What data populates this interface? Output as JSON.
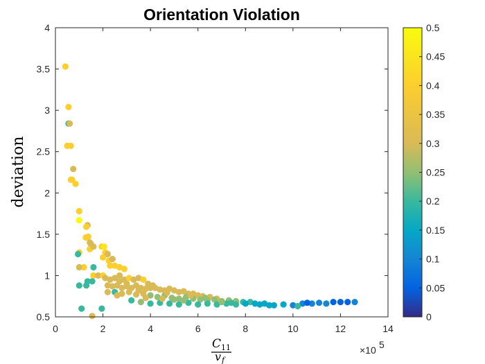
{
  "chart_data": {
    "type": "scatter",
    "title": "Orientation Violation",
    "ylabel": "deviation",
    "xlabel": {
      "numerator": "C",
      "numerator_sub": "11",
      "denominator": "v",
      "denominator_sub": "f"
    },
    "x_exponent": {
      "base": "×10",
      "power": "5"
    },
    "xlim": [
      0,
      14
    ],
    "ylim": [
      0.5,
      4
    ],
    "xticks": [
      "0",
      "2",
      "4",
      "6",
      "8",
      "10",
      "12",
      "14"
    ],
    "yticks": [
      "0.5",
      "1",
      "1.5",
      "2",
      "2.5",
      "3",
      "3.5",
      "4"
    ],
    "colorbar": {
      "range": [
        0,
        0.5
      ],
      "colormap": "parula",
      "ticks": [
        "0",
        "0.05",
        "0.1",
        "0.15",
        "0.2",
        "0.25",
        "0.3",
        "0.35",
        "0.4",
        "0.45",
        "0.5"
      ]
    },
    "grid": false,
    "points": [
      [
        0.42,
        3.53,
        0.4
      ],
      [
        0.55,
        3.04,
        0.4
      ],
      [
        0.55,
        2.84,
        0.2
      ],
      [
        0.6,
        2.84,
        0.3
      ],
      [
        0.5,
        2.57,
        0.4
      ],
      [
        0.65,
        2.57,
        0.4
      ],
      [
        0.75,
        2.29,
        0.3
      ],
      [
        0.7,
        2.16,
        0.4
      ],
      [
        0.65,
        2.16,
        0.4
      ],
      [
        0.85,
        2.11,
        0.4
      ],
      [
        1.0,
        1.78,
        0.4
      ],
      [
        1.0,
        1.67,
        0.5
      ],
      [
        1.35,
        1.61,
        0.3
      ],
      [
        1.3,
        1.59,
        0.4
      ],
      [
        1.28,
        1.46,
        0.4
      ],
      [
        1.38,
        1.47,
        0.4
      ],
      [
        1.45,
        1.4,
        0.3
      ],
      [
        1.5,
        1.38,
        0.3
      ],
      [
        1.0,
        1.28,
        0.4
      ],
      [
        0.95,
        1.26,
        0.2
      ],
      [
        1.45,
        1.32,
        0.4
      ],
      [
        1.6,
        1.35,
        0.3
      ],
      [
        1.2,
        1.1,
        0.4
      ],
      [
        1.0,
        1.1,
        0.3
      ],
      [
        1.6,
        1.1,
        0.2
      ],
      [
        1.6,
        1.0,
        0.4
      ],
      [
        1.35,
        0.93,
        0.2
      ],
      [
        1.55,
        0.93,
        0.2
      ],
      [
        1.3,
        0.88,
        0.2
      ],
      [
        1.0,
        0.88,
        0.2
      ],
      [
        1.1,
        0.6,
        0.2
      ],
      [
        1.95,
        0.6,
        0.2
      ],
      [
        1.55,
        0.51,
        0.3
      ],
      [
        1.95,
        1.35,
        0.4
      ],
      [
        2.05,
        1.35,
        0.45
      ],
      [
        2.1,
        1.28,
        0.4
      ],
      [
        2.2,
        1.26,
        0.3
      ],
      [
        2.0,
        1.22,
        0.4
      ],
      [
        2.25,
        1.18,
        0.4
      ],
      [
        2.4,
        1.2,
        0.3
      ],
      [
        2.3,
        1.12,
        0.4
      ],
      [
        2.5,
        1.12,
        0.4
      ],
      [
        2.7,
        1.1,
        0.4
      ],
      [
        2.9,
        1.08,
        0.4
      ],
      [
        1.8,
        1.0,
        0.3
      ],
      [
        2.0,
        1.0,
        0.4
      ],
      [
        2.1,
        0.97,
        0.3
      ],
      [
        2.3,
        0.95,
        0.3
      ],
      [
        2.5,
        0.97,
        0.3
      ],
      [
        2.7,
        0.93,
        0.3
      ],
      [
        2.9,
        0.95,
        0.3
      ],
      [
        3.1,
        0.97,
        0.4
      ],
      [
        3.3,
        0.95,
        0.3
      ],
      [
        3.5,
        0.97,
        0.3
      ],
      [
        3.7,
        0.95,
        0.4
      ],
      [
        3.9,
        0.9,
        0.3
      ],
      [
        4.1,
        0.88,
        0.3
      ],
      [
        2.2,
        0.88,
        0.3
      ],
      [
        2.4,
        0.87,
        0.3
      ],
      [
        2.6,
        0.88,
        0.3
      ],
      [
        2.8,
        0.85,
        0.3
      ],
      [
        3.0,
        0.87,
        0.3
      ],
      [
        3.2,
        0.85,
        0.3
      ],
      [
        3.4,
        0.88,
        0.3
      ],
      [
        3.6,
        0.85,
        0.3
      ],
      [
        3.8,
        0.84,
        0.3
      ],
      [
        4.0,
        0.85,
        0.3
      ],
      [
        4.2,
        0.85,
        0.3
      ],
      [
        4.4,
        0.83,
        0.3
      ],
      [
        4.6,
        0.82,
        0.3
      ],
      [
        4.8,
        0.84,
        0.3
      ],
      [
        5.0,
        0.82,
        0.3
      ],
      [
        5.2,
        0.8,
        0.3
      ],
      [
        5.4,
        0.81,
        0.3
      ],
      [
        5.6,
        0.78,
        0.3
      ],
      [
        5.8,
        0.78,
        0.3
      ],
      [
        6.0,
        0.76,
        0.3
      ],
      [
        6.2,
        0.75,
        0.3
      ],
      [
        6.5,
        0.74,
        0.3
      ],
      [
        6.8,
        0.72,
        0.3
      ],
      [
        2.5,
        0.8,
        0.2
      ],
      [
        2.8,
        0.78,
        0.3
      ],
      [
        3.1,
        0.8,
        0.3
      ],
      [
        3.4,
        0.77,
        0.3
      ],
      [
        3.7,
        0.78,
        0.3
      ],
      [
        4.0,
        0.76,
        0.25
      ],
      [
        4.3,
        0.74,
        0.25
      ],
      [
        4.6,
        0.76,
        0.25
      ],
      [
        4.9,
        0.73,
        0.25
      ],
      [
        5.2,
        0.72,
        0.25
      ],
      [
        5.5,
        0.74,
        0.25
      ],
      [
        5.8,
        0.72,
        0.25
      ],
      [
        6.1,
        0.71,
        0.25
      ],
      [
        6.4,
        0.7,
        0.25
      ],
      [
        6.7,
        0.71,
        0.25
      ],
      [
        7.0,
        0.69,
        0.25
      ],
      [
        7.3,
        0.7,
        0.25
      ],
      [
        7.6,
        0.69,
        0.25
      ],
      [
        7.9,
        0.68,
        0.2
      ],
      [
        8.2,
        0.68,
        0.2
      ],
      [
        3.2,
        0.7,
        0.2
      ],
      [
        3.6,
        0.68,
        0.25
      ],
      [
        4.0,
        0.66,
        0.2
      ],
      [
        4.4,
        0.67,
        0.2
      ],
      [
        4.8,
        0.66,
        0.2
      ],
      [
        5.2,
        0.65,
        0.2
      ],
      [
        5.6,
        0.67,
        0.2
      ],
      [
        6.0,
        0.65,
        0.2
      ],
      [
        6.4,
        0.66,
        0.2
      ],
      [
        6.8,
        0.65,
        0.2
      ],
      [
        7.2,
        0.66,
        0.2
      ],
      [
        7.6,
        0.65,
        0.2
      ],
      [
        8.0,
        0.66,
        0.15
      ],
      [
        8.4,
        0.66,
        0.15
      ],
      [
        8.8,
        0.66,
        0.15
      ],
      [
        9.2,
        0.64,
        0.15
      ],
      [
        9.6,
        0.65,
        0.15
      ],
      [
        10.0,
        0.64,
        0.1
      ],
      [
        10.4,
        0.66,
        0.1
      ],
      [
        10.8,
        0.66,
        0.1
      ],
      [
        11.1,
        0.67,
        0.1
      ],
      [
        11.4,
        0.66,
        0.1
      ],
      [
        11.7,
        0.68,
        0.05
      ],
      [
        12.0,
        0.68,
        0.05
      ],
      [
        12.3,
        0.68,
        0.05
      ],
      [
        12.6,
        0.68,
        0.1
      ],
      [
        10.6,
        0.67,
        0.05
      ],
      [
        10.2,
        0.63,
        0.2
      ],
      [
        9.0,
        0.64,
        0.15
      ],
      [
        8.6,
        0.65,
        0.15
      ],
      [
        7.4,
        0.67,
        0.2
      ],
      [
        7.0,
        0.68,
        0.25
      ],
      [
        5.4,
        0.7,
        0.25
      ],
      [
        5.0,
        0.71,
        0.25
      ],
      [
        4.5,
        0.72,
        0.3
      ],
      [
        3.8,
        0.73,
        0.3
      ],
      [
        2.6,
        0.76,
        0.3
      ],
      [
        2.2,
        0.8,
        0.3
      ],
      [
        3.5,
        0.82,
        0.3
      ],
      [
        4.7,
        0.79,
        0.3
      ],
      [
        5.7,
        0.76,
        0.3
      ],
      [
        6.3,
        0.73,
        0.25
      ],
      [
        3.0,
        0.9,
        0.3
      ],
      [
        2.7,
        1.0,
        0.3
      ]
    ]
  }
}
